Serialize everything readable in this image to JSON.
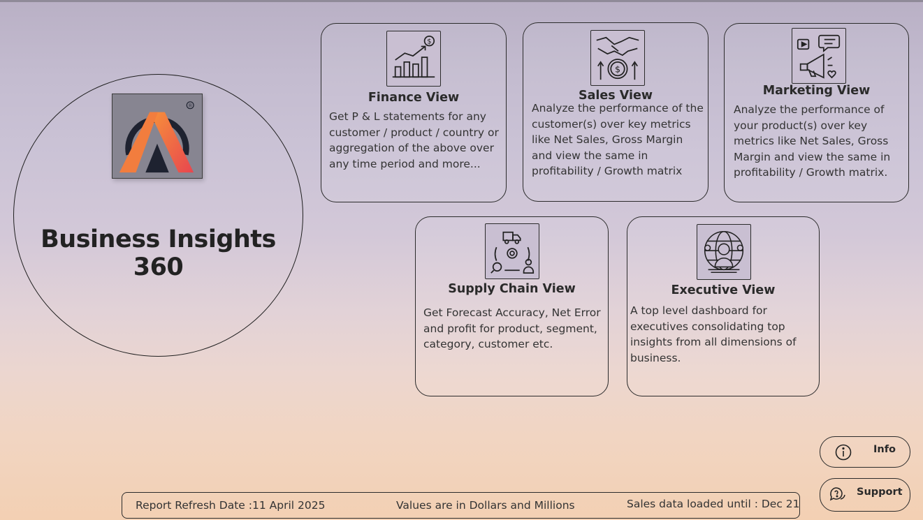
{
  "hero": {
    "title": "Business Insights 360",
    "logo_icon": "logo-a-icon",
    "logo_mark": "®"
  },
  "cards": [
    {
      "title": "Finance View",
      "icon": "finance-chart-icon",
      "description": "Get  P & L statements  for  any customer / product / country or aggregation of the  above over any time period and more..."
    },
    {
      "title": "Sales View",
      "icon": "handshake-money-icon",
      "description": "Analyze the performance of the customer(s) over key metrics like Net Sales, Gross Margin and view the same in profitability / Growth matrix"
    },
    {
      "title": "Marketing View",
      "icon": "megaphone-icon",
      "description": "Analyze the performance of your product(s) over key metrics like Net Sales, Gross Margin and view the same in profitability / Growth matrix."
    },
    {
      "title": "Supply Chain View",
      "icon": "supply-chain-icon",
      "description": "Get Forecast Accuracy, Net Error and profit for product, segment, category, customer etc."
    },
    {
      "title": "Executive View",
      "icon": "executive-globe-icon",
      "description": "A top level dashboard for executives consolidating top insights from all dimensions of business."
    }
  ],
  "footer": {
    "refresh_label": "Report Refresh Date :",
    "refresh_value": "11 April 2025",
    "units_note": "Values are in Dollars and Millions",
    "sales_loaded": "Sales data loaded until : Dec 21"
  },
  "buttons": {
    "info_label": "Info",
    "support_label": "Support"
  },
  "colors": {
    "logo_orange": "#f27d3e",
    "logo_red": "#e94a4f",
    "logo_bg": "#878591"
  }
}
